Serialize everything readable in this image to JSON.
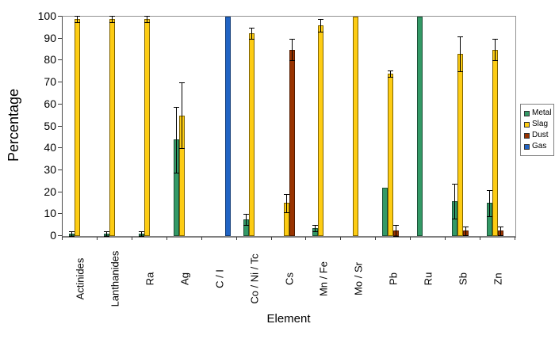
{
  "chart_data": {
    "type": "bar",
    "title": "",
    "xlabel": "Element",
    "ylabel": "Percentage",
    "ylim": [
      0,
      100
    ],
    "yticks": [
      0,
      10,
      20,
      30,
      40,
      50,
      60,
      70,
      80,
      90,
      100
    ],
    "grid": false,
    "legend_position": "right",
    "error_bars": true,
    "categories": [
      "Actinides",
      "Lanthanides",
      "Ra",
      "Ag",
      "C / I",
      "Co / Ni / Tc",
      "Cs",
      "Mn / Fe",
      "Mo / Sr",
      "Pb",
      "Ru",
      "Sb",
      "Zn"
    ],
    "series": [
      {
        "name": "Metal",
        "color": "#339966",
        "border_color": "#1c5037",
        "values": [
          1,
          1,
          1,
          44,
          0,
          7.5,
          0,
          3.5,
          0,
          22,
          100,
          16,
          15
        ],
        "errors": [
          1,
          1,
          1,
          15,
          0,
          2.5,
          0,
          1.5,
          0,
          0,
          0,
          8,
          6
        ]
      },
      {
        "name": "Slag",
        "color": "#fdcc13",
        "border_color": "#7f6300",
        "values": [
          99,
          99,
          99,
          55,
          0,
          92.5,
          15,
          96,
          100,
          74,
          0,
          83,
          85
        ],
        "errors": [
          1.5,
          1.5,
          1.5,
          15,
          0,
          2.5,
          4,
          3,
          0,
          1.5,
          0,
          8,
          5
        ]
      },
      {
        "name": "Dust",
        "color": "#993300",
        "border_color": "#541c00",
        "values": [
          0,
          0,
          0,
          0,
          0,
          0,
          85,
          0,
          0,
          2.5,
          0,
          2.5,
          2.5
        ],
        "errors": [
          0,
          0,
          0,
          0,
          0,
          0,
          5,
          0,
          0,
          2.5,
          0,
          2,
          2
        ]
      },
      {
        "name": "Gas",
        "color": "#2164c4",
        "border_color": "#123c78",
        "values": [
          0,
          0,
          0,
          0,
          100,
          0,
          0,
          0,
          0,
          0,
          0,
          0,
          0
        ],
        "errors": [
          0,
          0,
          0,
          0,
          0,
          0,
          0,
          0,
          0,
          0,
          0,
          0,
          0
        ]
      }
    ]
  }
}
